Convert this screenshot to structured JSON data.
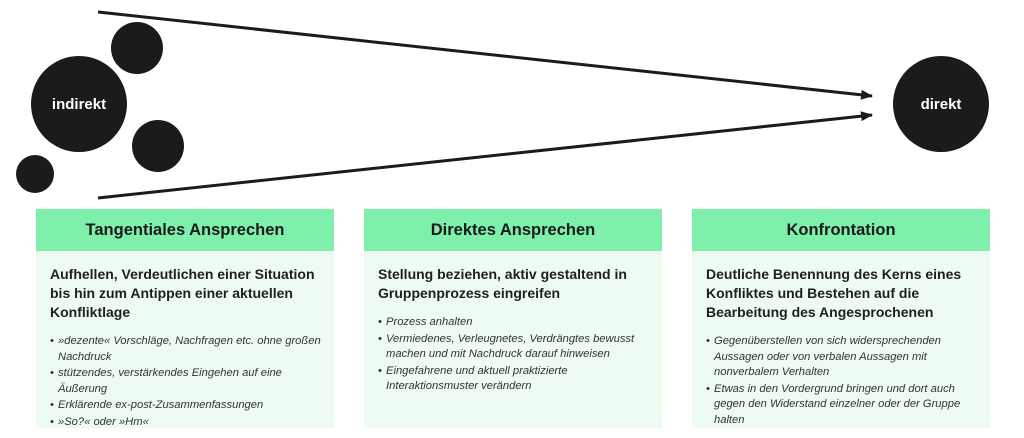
{
  "circles": {
    "left_label": "indirekt",
    "right_label": "direkt"
  },
  "colors": {
    "circle_fill": "#1b1b1b",
    "header_green": "#7ff0ab",
    "card_bg": "#eefbf1"
  },
  "cards": [
    {
      "title": "Tangentiales Ansprechen",
      "description": "Aufhellen, Verdeutlichen einer Situation bis hin zum Antippen einer aktuellen Konfliktlage",
      "bullets": [
        "»dezente« Vorschläge, Nachfragen etc. ohne großen Nachdruck",
        "stützendes, verstärkendes Eingehen auf eine Äußerung",
        "Erklärende ex-post-Zusammenfassungen",
        "»So?« oder »Hm«"
      ]
    },
    {
      "title": "Direktes Ansprechen",
      "description": "Stellung beziehen, aktiv gestaltend in Gruppenprozess eingreifen",
      "bullets": [
        "Prozess anhalten",
        "Vermiedenes, Verleugnetes, Verdrängtes bewusst machen und mit Nachdruck darauf hinweisen",
        "Eingefahrene und aktuell praktizierte Interaktionsmuster verändern"
      ]
    },
    {
      "title": "Konfrontation",
      "description": "Deutliche Benennung des Kerns eines Konfliktes und Bestehen auf die Bearbeitung des Angesprochenen",
      "bullets": [
        "Gegenüberstellen von sich widersprechenden Aussagen oder von verbalen Aussagen mit nonverbalem Verhalten",
        "Etwas in den Vordergrund bringen und dort auch gegen den Widerstand einzelner oder der Gruppe halten"
      ]
    }
  ]
}
